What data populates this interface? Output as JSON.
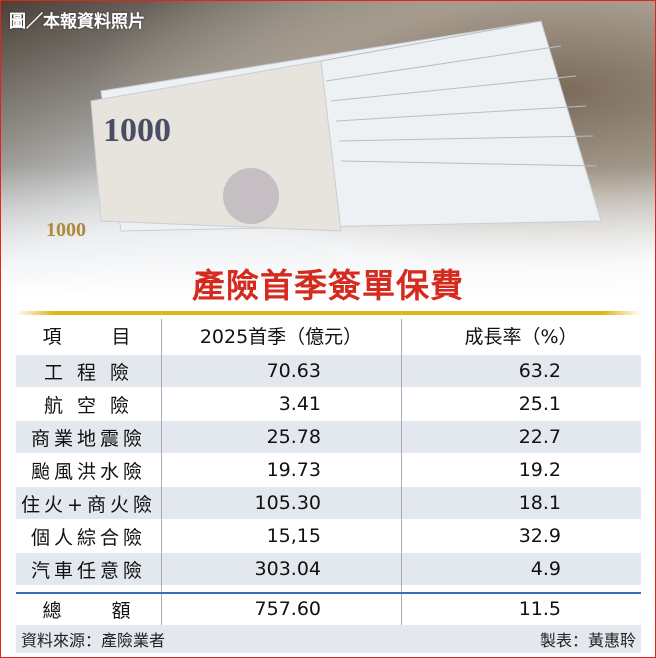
{
  "photo_caption": "圖／本報資料照片",
  "chart_data": {
    "type": "table",
    "title": "產險首季簽單保費",
    "columns": [
      "項　　目",
      "2025首季（億元）",
      "成長率（%）"
    ],
    "rows": [
      {
        "item": "工 程 險",
        "premium": "70.63",
        "growth": "63.2"
      },
      {
        "item": "航 空 險",
        "premium": "3.41",
        "growth": "25.1"
      },
      {
        "item": "商業地震險",
        "premium": "25.78",
        "growth": "22.7"
      },
      {
        "item": "颱風洪水險",
        "premium": "19.73",
        "growth": "19.2"
      },
      {
        "item": "住火+商火險",
        "premium": "105.30",
        "growth": "18.1"
      },
      {
        "item": "個人綜合險",
        "premium": "15,15",
        "growth": "32.9"
      },
      {
        "item": "汽車任意險",
        "premium": "303.04",
        "growth": "4.9"
      }
    ],
    "total": {
      "item": "總　　額",
      "premium": "757.60",
      "growth": "11.5"
    },
    "source": "資料來源：產險業者",
    "credit": "製表：黃惠聆"
  },
  "colors": {
    "title": "#d42b1e",
    "accent_line": "#e2b617",
    "row_shade": "#e3e7ee",
    "total_line": "#3a6fb8",
    "border": "#e3241b"
  }
}
